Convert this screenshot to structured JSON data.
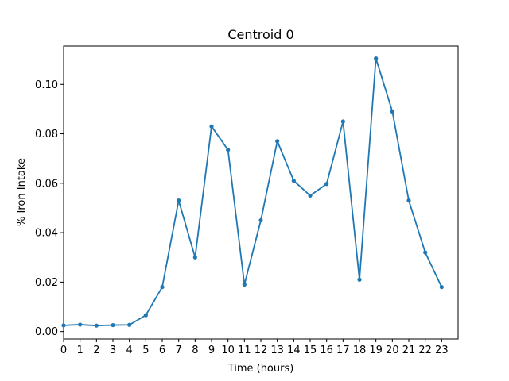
{
  "chart_data": {
    "type": "line",
    "title": "Centroid 0",
    "xlabel": "Time (hours)",
    "ylabel": "% Iron Intake",
    "x": [
      0,
      1,
      2,
      3,
      4,
      5,
      6,
      7,
      8,
      9,
      10,
      11,
      12,
      13,
      14,
      15,
      16,
      17,
      18,
      19,
      20,
      21,
      22,
      23
    ],
    "series": [
      {
        "values": [
          0.0025,
          0.0028,
          0.0024,
          0.0026,
          0.0027,
          0.0066,
          0.018,
          0.053,
          0.03,
          0.083,
          0.0735,
          0.019,
          0.045,
          0.077,
          0.061,
          0.055,
          0.0597,
          0.085,
          0.021,
          0.1105,
          0.089,
          0.053,
          0.032,
          0.018
        ],
        "color": "#1f77b4"
      }
    ],
    "xticks": [
      "0",
      "1",
      "2",
      "3",
      "4",
      "5",
      "6",
      "7",
      "8",
      "9",
      "10",
      "11",
      "12",
      "13",
      "14",
      "15",
      "16",
      "17",
      "18",
      "19",
      "20",
      "21",
      "22",
      "23"
    ],
    "yticks": [
      "0.00",
      "0.02",
      "0.04",
      "0.06",
      "0.08",
      "0.10"
    ],
    "xlim": [
      0,
      24
    ],
    "ylim": [
      -0.003,
      0.1155
    ],
    "grid": false,
    "legend": "none"
  }
}
